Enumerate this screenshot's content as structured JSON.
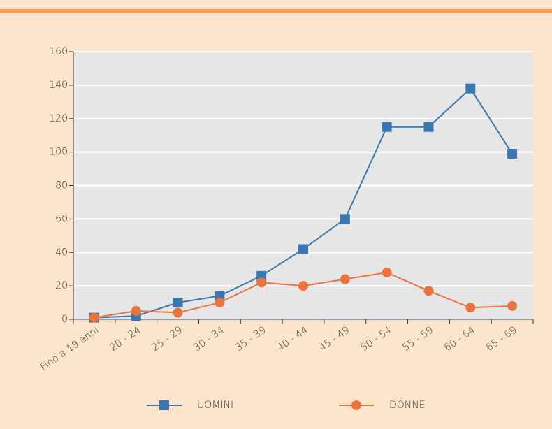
{
  "chart_data": {
    "type": "line",
    "categories": [
      "Fino a 19 anni",
      "20 - 24",
      "25 - 29",
      "30 - 34",
      "35 - 39",
      "40 - 44",
      "45 - 49",
      "50 - 54",
      "55 - 59",
      "60 - 64",
      "65 - 69"
    ],
    "series": [
      {
        "name": "UOMINI",
        "color": "#3a76b2",
        "marker": "square",
        "values": [
          1,
          2,
          10,
          14,
          26,
          42,
          60,
          115,
          115,
          138,
          99
        ]
      },
      {
        "name": "DONNE",
        "color": "#ea7440",
        "marker": "circle",
        "values": [
          1,
          5,
          4,
          10,
          22,
          20,
          24,
          28,
          17,
          7,
          8
        ]
      }
    ],
    "ylim": [
      0,
      160
    ],
    "yticks": [
      0,
      20,
      40,
      60,
      80,
      100,
      120,
      140,
      160
    ],
    "grid": true
  }
}
